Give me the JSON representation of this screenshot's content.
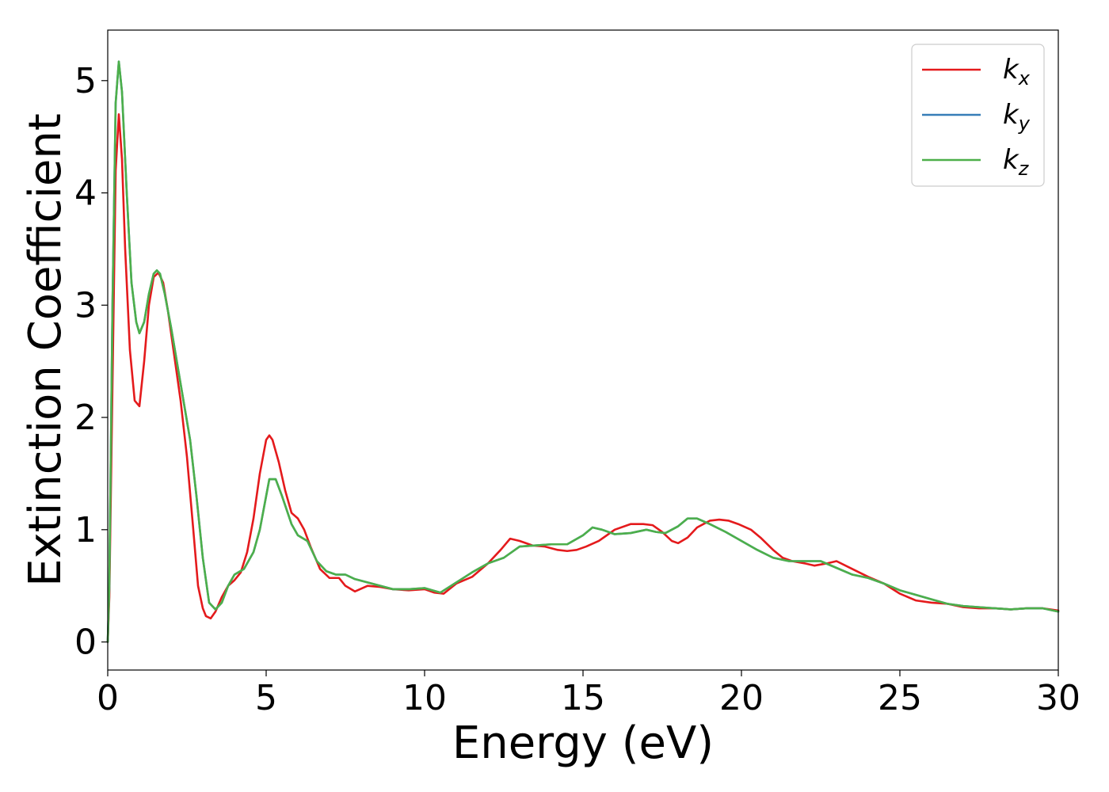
{
  "chart_data": {
    "type": "line",
    "title": "",
    "xlabel": "Energy (eV)",
    "ylabel": "Extinction Coefficient",
    "xlim": [
      0,
      30
    ],
    "ylim": [
      -0.25,
      5.45
    ],
    "xticks": [
      0,
      5,
      10,
      15,
      20,
      25,
      30
    ],
    "yticks": [
      0,
      1,
      2,
      3,
      4,
      5
    ],
    "grid": false,
    "legend_position": "top-right",
    "series": [
      {
        "name": "k",
        "subscript": "x",
        "color": "#e41a1c",
        "x": [
          0,
          0.05,
          0.15,
          0.25,
          0.35,
          0.45,
          0.55,
          0.7,
          0.85,
          1.0,
          1.15,
          1.3,
          1.45,
          1.6,
          1.75,
          1.9,
          2.1,
          2.3,
          2.5,
          2.7,
          2.85,
          3.0,
          3.1,
          3.25,
          3.4,
          3.6,
          3.8,
          4.0,
          4.2,
          4.4,
          4.6,
          4.8,
          5.0,
          5.1,
          5.2,
          5.4,
          5.6,
          5.8,
          6.0,
          6.2,
          6.4,
          6.7,
          7.0,
          7.3,
          7.5,
          7.8,
          8.2,
          8.6,
          9.0,
          9.5,
          10.0,
          10.3,
          10.6,
          11.0,
          11.5,
          12.0,
          12.4,
          12.7,
          13.0,
          13.4,
          13.8,
          14.2,
          14.5,
          14.8,
          15.1,
          15.5,
          16.0,
          16.5,
          16.9,
          17.2,
          17.5,
          17.8,
          18.0,
          18.3,
          18.6,
          19.0,
          19.3,
          19.6,
          19.9,
          20.3,
          20.6,
          21.0,
          21.3,
          21.6,
          22.0,
          22.3,
          22.7,
          23.0,
          23.5,
          24.0,
          24.5,
          25.0,
          25.5,
          26.0,
          26.5,
          27.0,
          27.5,
          28.0,
          28.5,
          29.0,
          29.5,
          30.0
        ],
        "y": [
          0.0,
          0.4,
          2.3,
          4.2,
          4.7,
          4.3,
          3.5,
          2.6,
          2.15,
          2.1,
          2.5,
          3.0,
          3.25,
          3.29,
          3.2,
          2.95,
          2.55,
          2.15,
          1.65,
          1.0,
          0.5,
          0.3,
          0.23,
          0.21,
          0.27,
          0.4,
          0.5,
          0.55,
          0.62,
          0.8,
          1.1,
          1.5,
          1.8,
          1.84,
          1.8,
          1.6,
          1.35,
          1.15,
          1.1,
          1.0,
          0.85,
          0.65,
          0.57,
          0.57,
          0.5,
          0.45,
          0.5,
          0.49,
          0.47,
          0.46,
          0.47,
          0.44,
          0.43,
          0.52,
          0.58,
          0.7,
          0.82,
          0.92,
          0.9,
          0.86,
          0.85,
          0.82,
          0.81,
          0.82,
          0.85,
          0.9,
          1.0,
          1.05,
          1.05,
          1.04,
          0.98,
          0.9,
          0.88,
          0.93,
          1.02,
          1.08,
          1.09,
          1.08,
          1.05,
          1.0,
          0.93,
          0.82,
          0.75,
          0.72,
          0.7,
          0.68,
          0.7,
          0.72,
          0.65,
          0.58,
          0.52,
          0.43,
          0.37,
          0.35,
          0.34,
          0.31,
          0.3,
          0.3,
          0.29,
          0.3,
          0.3,
          0.28
        ]
      },
      {
        "name": "k",
        "subscript": "y",
        "color": "#377eb8",
        "x": [
          0,
          0.05,
          0.15,
          0.25,
          0.35,
          0.45,
          0.6,
          0.75,
          0.9,
          1.0,
          1.15,
          1.3,
          1.45,
          1.55,
          1.65,
          1.8,
          2.0,
          2.3,
          2.6,
          2.8,
          3.0,
          3.2,
          3.4,
          3.6,
          3.8,
          4.0,
          4.3,
          4.6,
          4.8,
          5.0,
          5.1,
          5.3,
          5.5,
          5.8,
          6.0,
          6.3,
          6.6,
          6.9,
          7.2,
          7.5,
          7.8,
          8.2,
          8.6,
          9.0,
          9.5,
          10.0,
          10.5,
          11.0,
          11.5,
          12.0,
          12.5,
          13.0,
          13.5,
          14.0,
          14.5,
          15.0,
          15.3,
          15.6,
          16.0,
          16.5,
          17.0,
          17.3,
          17.6,
          18.0,
          18.3,
          18.6,
          19.0,
          19.5,
          20.0,
          20.5,
          21.0,
          21.5,
          22.0,
          22.5,
          23.0,
          23.5,
          24.0,
          24.5,
          25.0,
          25.5,
          26.0,
          26.5,
          27.0,
          27.5,
          28.0,
          28.5,
          29.0,
          29.5,
          30.0
        ],
        "y": [
          0.0,
          0.5,
          3.0,
          4.8,
          5.17,
          4.9,
          4.0,
          3.2,
          2.85,
          2.75,
          2.85,
          3.1,
          3.28,
          3.31,
          3.28,
          3.1,
          2.8,
          2.3,
          1.8,
          1.3,
          0.75,
          0.35,
          0.29,
          0.35,
          0.5,
          0.6,
          0.65,
          0.8,
          1.0,
          1.3,
          1.45,
          1.45,
          1.3,
          1.05,
          0.95,
          0.9,
          0.72,
          0.63,
          0.6,
          0.6,
          0.56,
          0.53,
          0.5,
          0.47,
          0.47,
          0.48,
          0.44,
          0.53,
          0.62,
          0.7,
          0.75,
          0.85,
          0.86,
          0.87,
          0.87,
          0.95,
          1.02,
          1.0,
          0.96,
          0.97,
          1.0,
          0.98,
          0.97,
          1.03,
          1.1,
          1.1,
          1.05,
          0.98,
          0.9,
          0.82,
          0.75,
          0.72,
          0.72,
          0.72,
          0.66,
          0.6,
          0.57,
          0.52,
          0.46,
          0.42,
          0.38,
          0.34,
          0.32,
          0.31,
          0.3,
          0.29,
          0.3,
          0.3,
          0.27
        ]
      },
      {
        "name": "k",
        "subscript": "z",
        "color": "#4daf4a",
        "x": [
          0,
          0.05,
          0.15,
          0.25,
          0.35,
          0.45,
          0.6,
          0.75,
          0.9,
          1.0,
          1.15,
          1.3,
          1.45,
          1.55,
          1.65,
          1.8,
          2.0,
          2.3,
          2.6,
          2.8,
          3.0,
          3.2,
          3.4,
          3.6,
          3.8,
          4.0,
          4.3,
          4.6,
          4.8,
          5.0,
          5.1,
          5.3,
          5.5,
          5.8,
          6.0,
          6.3,
          6.6,
          6.9,
          7.2,
          7.5,
          7.8,
          8.2,
          8.6,
          9.0,
          9.5,
          10.0,
          10.5,
          11.0,
          11.5,
          12.0,
          12.5,
          13.0,
          13.5,
          14.0,
          14.5,
          15.0,
          15.3,
          15.6,
          16.0,
          16.5,
          17.0,
          17.3,
          17.6,
          18.0,
          18.3,
          18.6,
          19.0,
          19.5,
          20.0,
          20.5,
          21.0,
          21.5,
          22.0,
          22.5,
          23.0,
          23.5,
          24.0,
          24.5,
          25.0,
          25.5,
          26.0,
          26.5,
          27.0,
          27.5,
          28.0,
          28.5,
          29.0,
          29.5,
          30.0
        ],
        "y": [
          0.0,
          0.5,
          3.0,
          4.8,
          5.17,
          4.9,
          4.0,
          3.2,
          2.85,
          2.75,
          2.85,
          3.1,
          3.28,
          3.31,
          3.28,
          3.1,
          2.8,
          2.3,
          1.8,
          1.3,
          0.75,
          0.35,
          0.29,
          0.35,
          0.5,
          0.6,
          0.65,
          0.8,
          1.0,
          1.3,
          1.45,
          1.45,
          1.3,
          1.05,
          0.95,
          0.9,
          0.72,
          0.63,
          0.6,
          0.6,
          0.56,
          0.53,
          0.5,
          0.47,
          0.47,
          0.48,
          0.44,
          0.53,
          0.62,
          0.7,
          0.75,
          0.85,
          0.86,
          0.87,
          0.87,
          0.95,
          1.02,
          1.0,
          0.96,
          0.97,
          1.0,
          0.98,
          0.97,
          1.03,
          1.1,
          1.1,
          1.05,
          0.98,
          0.9,
          0.82,
          0.75,
          0.72,
          0.72,
          0.72,
          0.66,
          0.6,
          0.57,
          0.52,
          0.46,
          0.42,
          0.38,
          0.34,
          0.32,
          0.31,
          0.3,
          0.29,
          0.3,
          0.3,
          0.27
        ]
      }
    ]
  }
}
